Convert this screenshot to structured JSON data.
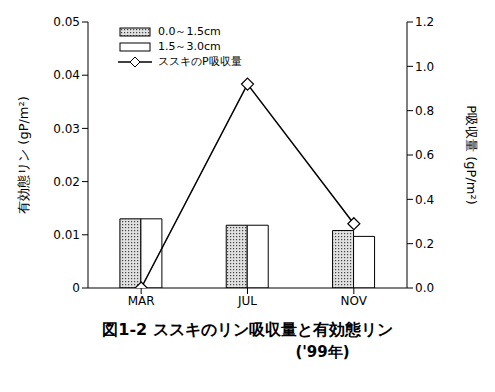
{
  "chart_data": {
    "type": "bar",
    "title": "図1-2  ススキのリン吸収量と有効態リン",
    "subtitle": "('99年)",
    "categories": [
      "MAR",
      "JUL",
      "NOV"
    ],
    "y_label": "有効態リン (gP/m²)",
    "y2_label": "P吸収量 (gP/m²)",
    "ylim": [
      0,
      0.05
    ],
    "yticks": [
      0,
      0.01,
      0.02,
      0.03,
      0.04,
      0.05
    ],
    "y2lim": [
      0,
      1.2
    ],
    "y2ticks": [
      {
        "value": 0,
        "label": "0.0"
      },
      {
        "value": 0.2,
        "label": "0.2"
      },
      {
        "value": 0.4,
        "label": "0.4"
      },
      {
        "value": 0.6,
        "label": "0.6"
      },
      {
        "value": 0.8,
        "label": "0.8"
      },
      {
        "value": 1,
        "label": "1.0"
      },
      {
        "value": 1.2,
        "label": "1.2"
      }
    ],
    "legend": "upper left",
    "grid": false,
    "series": [
      {
        "name": "0.0～1.5cm",
        "type": "bar",
        "color": "#bdbdbd",
        "values": [
          0.013,
          0.0118,
          0.0108
        ]
      },
      {
        "name": "1.5～3.0cm",
        "type": "bar",
        "color": "#ffffff",
        "values": [
          0.013,
          0.0118,
          0.0097
        ]
      },
      {
        "name": "ススキのP吸収量",
        "type": "line",
        "axis": "y2",
        "color": "#000000",
        "marker": "diamond",
        "values": [
          0,
          0.92,
          0.29
        ]
      }
    ]
  }
}
